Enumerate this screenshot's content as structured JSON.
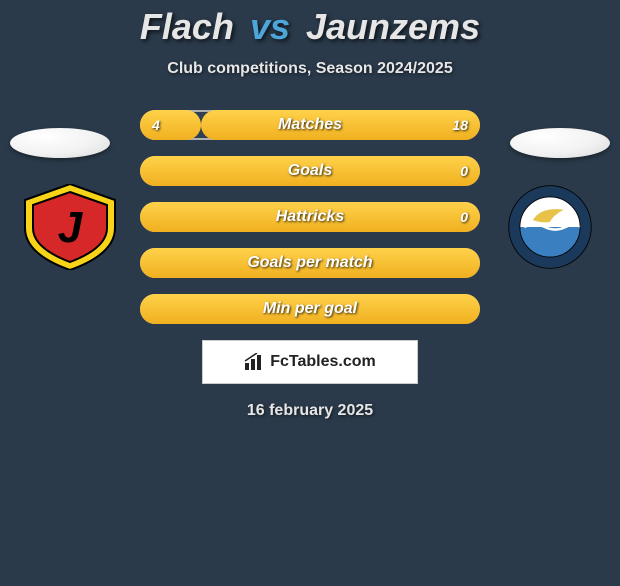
{
  "colors": {
    "background": "#2a3a4a",
    "accent": "#4da6d9",
    "bar_fill_top": "#ffd24a",
    "bar_fill_bottom": "#f0b020",
    "bar_border": "#b0b0b0",
    "text": "#e6e6e6",
    "bar_track": "#2f4052"
  },
  "title": {
    "player1": "Flach",
    "vs": "vs",
    "player2": "Jaunzems"
  },
  "subtitle": "Club competitions, Season 2024/2025",
  "badge_left": {
    "shape": "shield",
    "outer": "#f7d417",
    "inner": "#d62828",
    "glyph": "J",
    "glyph_color": "#000000"
  },
  "badge_right": {
    "shape": "circle",
    "ring_outer": "#1b3a5b",
    "ring_text_color": "#f0f0f0",
    "top_half": "#ffffff",
    "bottom_half": "#3a7fbf",
    "bird_color": "#e8c34a",
    "wave_color": "#ffffff"
  },
  "bars": [
    {
      "label": "Matches",
      "left_value": "4",
      "right_value": "18",
      "left_pct": 18,
      "right_pct": 82,
      "style": "split"
    },
    {
      "label": "Goals",
      "left_value": "",
      "right_value": "0",
      "left_pct": 0,
      "right_pct": 0,
      "style": "full"
    },
    {
      "label": "Hattricks",
      "left_value": "",
      "right_value": "0",
      "left_pct": 0,
      "right_pct": 0,
      "style": "full"
    },
    {
      "label": "Goals per match",
      "left_value": "",
      "right_value": "",
      "left_pct": 0,
      "right_pct": 0,
      "style": "full"
    },
    {
      "label": "Min per goal",
      "left_value": "",
      "right_value": "",
      "left_pct": 0,
      "right_pct": 0,
      "style": "full"
    }
  ],
  "site_logo_text": "FcTables.com",
  "date": "16 february 2025"
}
